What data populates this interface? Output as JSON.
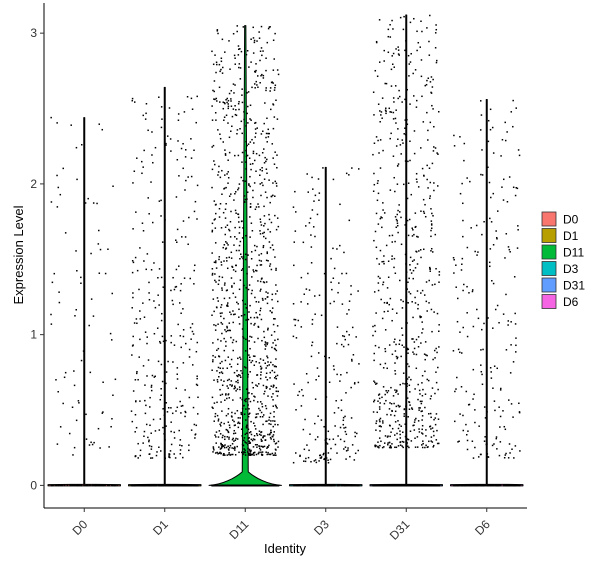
{
  "chart_data": {
    "type": "violin",
    "xlabel": "Identity",
    "ylabel": "Expression Level",
    "ylim": [
      -0.15,
      3.2
    ],
    "yticks": [
      "0",
      "1",
      "2",
      "3"
    ],
    "categories": [
      "D0",
      "D1",
      "D11",
      "D3",
      "D31",
      "D6"
    ],
    "colors": [
      "#F8766D",
      "#B79F00",
      "#00BA38",
      "#00BFC4",
      "#619CFF",
      "#F564E3"
    ],
    "series": [
      {
        "name": "D0",
        "max": 2.44,
        "pos_min": 0.2,
        "n_points": 160,
        "violin_peak": 0.0
      },
      {
        "name": "D1",
        "max": 2.64,
        "pos_min": 0.18,
        "n_points": 600,
        "violin_peak": 0.0
      },
      {
        "name": "D11",
        "max": 3.05,
        "pos_min": 0.2,
        "n_points": 2200,
        "violin_peak": 0.09
      },
      {
        "name": "D3",
        "max": 2.11,
        "pos_min": 0.15,
        "n_points": 420,
        "violin_peak": 0.0
      },
      {
        "name": "D31",
        "max": 3.12,
        "pos_min": 0.25,
        "n_points": 1300,
        "violin_peak": 0.0
      },
      {
        "name": "D6",
        "max": 2.56,
        "pos_min": 0.18,
        "n_points": 420,
        "violin_peak": 0.0
      }
    ],
    "grid": false,
    "legend_position": "right"
  }
}
